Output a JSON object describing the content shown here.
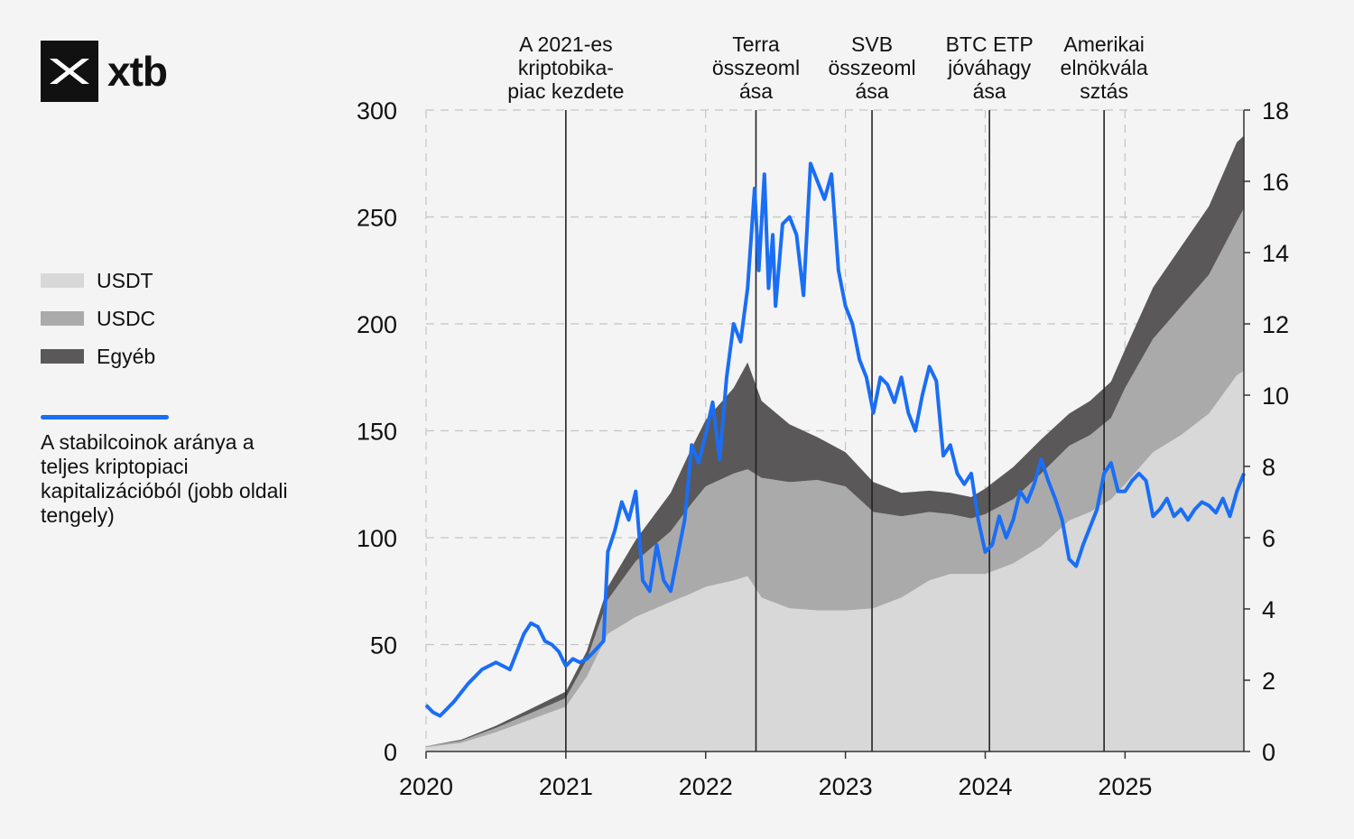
{
  "logo": {
    "name": "xtb",
    "icon": "xtb-logo-icon"
  },
  "legend": {
    "items": [
      {
        "label": "USDT",
        "color": "#d8d8d8"
      },
      {
        "label": "USDC",
        "color": "#aaaaaa"
      },
      {
        "label": "Egyéb",
        "color": "#5a5858"
      }
    ],
    "line": {
      "label": "A stabilcoinok aránya a teljes kriptopiaci kapitalizációból (jobb oldali tengely)",
      "color": "#1a6ef5"
    }
  },
  "chart_data": {
    "type": "area",
    "x_ticks": [
      "2020",
      "2021",
      "2022",
      "2023",
      "2024",
      "2025"
    ],
    "xlim": [
      2020.0,
      2025.85
    ],
    "y_left": {
      "ticks": [
        0,
        50,
        100,
        150,
        200,
        250,
        300
      ],
      "lim": [
        0,
        300
      ]
    },
    "y_right": {
      "ticks": [
        0,
        2,
        4,
        6,
        8,
        10,
        12,
        14,
        16,
        18
      ],
      "lim": [
        0,
        18
      ]
    },
    "grid": true,
    "annotations": [
      {
        "x": 2021.0,
        "label": [
          "A 2021-es",
          "kriptobika-",
          "piac kezdete"
        ]
      },
      {
        "x": 2022.36,
        "label": [
          "Terra",
          "összeoml",
          "ása"
        ]
      },
      {
        "x": 2023.19,
        "label": [
          "SVB",
          "összeoml",
          "ása"
        ]
      },
      {
        "x": 2024.03,
        "label": [
          "BTC ETP",
          "jóváhagy",
          "ása"
        ]
      },
      {
        "x": 2024.85,
        "label": [
          "Amerikai",
          "elnökvála",
          "sztás"
        ]
      }
    ],
    "stack_x": [
      2020.0,
      2020.25,
      2020.5,
      2020.75,
      2021.0,
      2021.15,
      2021.3,
      2021.5,
      2021.75,
      2021.9,
      2022.0,
      2022.2,
      2022.3,
      2022.4,
      2022.6,
      2022.8,
      2023.0,
      2023.2,
      2023.4,
      2023.6,
      2023.75,
      2023.9,
      2024.0,
      2024.2,
      2024.4,
      2024.6,
      2024.75,
      2024.9,
      2025.0,
      2025.2,
      2025.4,
      2025.6,
      2025.8,
      2025.85
    ],
    "series": [
      {
        "name": "USDT",
        "values": [
          2,
          4,
          9,
          15,
          21,
          35,
          55,
          63,
          70,
          74,
          77,
          80,
          82,
          72,
          67,
          66,
          66,
          67,
          72,
          80,
          83,
          83,
          83,
          88,
          96,
          108,
          112,
          118,
          125,
          140,
          148,
          158,
          176,
          178
        ]
      },
      {
        "name": "USDC",
        "values": [
          0.5,
          1,
          2,
          3,
          4,
          8,
          16,
          26,
          33,
          42,
          47,
          50,
          50,
          56,
          59,
          61,
          58,
          45,
          38,
          32,
          28,
          26,
          28,
          30,
          34,
          35,
          36,
          38,
          45,
          53,
          60,
          65,
          72,
          76
        ]
      },
      {
        "name": "Egyéb",
        "values": [
          0,
          0.5,
          1,
          2,
          3,
          4,
          6,
          10,
          18,
          26,
          31,
          40,
          50,
          36,
          27,
          20,
          16,
          14,
          11,
          10,
          10,
          10,
          12,
          15,
          16,
          15,
          16,
          17,
          18,
          24,
          28,
          32,
          37,
          34
        ]
      }
    ],
    "line": {
      "name": "A stabilcoinok aránya a teljes kriptopiaci kapitalizációból (jobb oldali tengely)",
      "x": [
        2020.0,
        2020.05,
        2020.1,
        2020.15,
        2020.2,
        2020.3,
        2020.4,
        2020.5,
        2020.6,
        2020.65,
        2020.7,
        2020.75,
        2020.8,
        2020.85,
        2020.9,
        2020.95,
        2021.0,
        2021.05,
        2021.1,
        2021.15,
        2021.2,
        2021.27,
        2021.3,
        2021.35,
        2021.4,
        2021.45,
        2021.5,
        2021.55,
        2021.6,
        2021.65,
        2021.7,
        2021.75,
        2021.8,
        2021.85,
        2021.9,
        2021.95,
        2022.0,
        2022.05,
        2022.1,
        2022.15,
        2022.2,
        2022.25,
        2022.3,
        2022.35,
        2022.38,
        2022.42,
        2022.45,
        2022.48,
        2022.5,
        2022.55,
        2022.6,
        2022.65,
        2022.7,
        2022.75,
        2022.8,
        2022.85,
        2022.9,
        2022.95,
        2023.0,
        2023.05,
        2023.1,
        2023.15,
        2023.2,
        2023.25,
        2023.3,
        2023.35,
        2023.4,
        2023.45,
        2023.5,
        2023.55,
        2023.6,
        2023.65,
        2023.7,
        2023.75,
        2023.8,
        2023.85,
        2023.9,
        2023.95,
        2024.0,
        2024.05,
        2024.1,
        2024.15,
        2024.2,
        2024.25,
        2024.3,
        2024.35,
        2024.4,
        2024.45,
        2024.5,
        2024.55,
        2024.6,
        2024.65,
        2024.7,
        2024.75,
        2024.8,
        2024.85,
        2024.9,
        2024.95,
        2025.0,
        2025.05,
        2025.1,
        2025.15,
        2025.2,
        2025.25,
        2025.3,
        2025.35,
        2025.4,
        2025.45,
        2025.5,
        2025.55,
        2025.6,
        2025.65,
        2025.7,
        2025.75,
        2025.8,
        2025.85
      ],
      "values": [
        1.3,
        1.1,
        1.0,
        1.2,
        1.4,
        1.9,
        2.3,
        2.5,
        2.3,
        2.8,
        3.3,
        3.6,
        3.5,
        3.1,
        3.0,
        2.8,
        2.4,
        2.6,
        2.5,
        2.6,
        2.8,
        3.1,
        5.6,
        6.2,
        7.0,
        6.5,
        7.3,
        4.8,
        4.5,
        5.8,
        4.8,
        4.5,
        5.5,
        6.5,
        8.6,
        8.1,
        8.9,
        9.8,
        8.2,
        10.5,
        12.0,
        11.5,
        13.0,
        15.8,
        13.5,
        16.2,
        13.0,
        14.5,
        12.5,
        14.8,
        15.0,
        14.5,
        12.8,
        16.5,
        16.0,
        15.5,
        16.2,
        13.5,
        12.5,
        12.0,
        11.0,
        10.5,
        9.5,
        10.5,
        10.3,
        9.8,
        10.5,
        9.5,
        9.0,
        10.0,
        10.8,
        10.4,
        8.3,
        8.6,
        7.8,
        7.5,
        7.8,
        6.5,
        5.6,
        5.8,
        6.6,
        6.0,
        6.5,
        7.3,
        7.0,
        7.5,
        8.2,
        7.6,
        7.1,
        6.5,
        5.4,
        5.2,
        5.8,
        6.3,
        6.8,
        7.8,
        8.1,
        7.3,
        7.3,
        7.6,
        7.8,
        7.6,
        6.6,
        6.8,
        7.1,
        6.6,
        6.8,
        6.5,
        6.8,
        7.0,
        6.9,
        6.7,
        7.1,
        6.6,
        7.3,
        7.8
      ]
    }
  }
}
